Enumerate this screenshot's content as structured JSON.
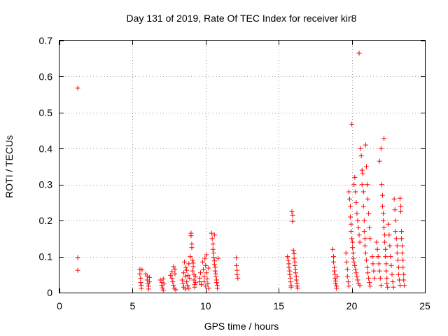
{
  "chart_data": {
    "type": "scatter",
    "title": "Day 131 of 2019, Rate Of TEC Index for receiver kir8",
    "xlabel": "GPS time / hours",
    "ylabel": "ROTI / TECUs",
    "xlim": [
      0,
      25
    ],
    "ylim": [
      0,
      0.7
    ],
    "xticks": [
      0,
      5,
      10,
      15,
      20,
      25
    ],
    "yticks": [
      0,
      0.1,
      0.2,
      0.3,
      0.4,
      0.5,
      0.6,
      0.7
    ],
    "xtick_labels": [
      "0",
      "5",
      "10",
      "15",
      "20",
      "25"
    ],
    "ytick_labels": [
      "0",
      "0.1",
      "0.2",
      "0.3",
      "0.4",
      "0.5",
      "0.6",
      "0.7"
    ],
    "grid": true,
    "marker": "+",
    "marker_color": "#ff0000",
    "series": [
      {
        "name": "ROTI",
        "points": [
          [
            1.25,
            0.568
          ],
          [
            1.25,
            0.097
          ],
          [
            1.25,
            0.062
          ],
          [
            5.5,
            0.065
          ],
          [
            5.5,
            0.052
          ],
          [
            5.55,
            0.04
          ],
          [
            5.55,
            0.028
          ],
          [
            5.6,
            0.02
          ],
          [
            5.6,
            0.012
          ],
          [
            5.65,
            0.063
          ],
          [
            5.9,
            0.052
          ],
          [
            6.0,
            0.046
          ],
          [
            6.0,
            0.035
          ],
          [
            6.05,
            0.025
          ],
          [
            6.1,
            0.018
          ],
          [
            6.1,
            0.01
          ],
          [
            6.15,
            0.03
          ],
          [
            6.15,
            0.042
          ],
          [
            6.9,
            0.035
          ],
          [
            7.0,
            0.028
          ],
          [
            7.0,
            0.02
          ],
          [
            7.05,
            0.013
          ],
          [
            7.1,
            0.007
          ],
          [
            7.1,
            0.038
          ],
          [
            7.15,
            0.024
          ],
          [
            7.6,
            0.048
          ],
          [
            7.7,
            0.058
          ],
          [
            7.7,
            0.04
          ],
          [
            7.75,
            0.03
          ],
          [
            7.8,
            0.072
          ],
          [
            7.8,
            0.02
          ],
          [
            7.85,
            0.012
          ],
          [
            7.9,
            0.065
          ],
          [
            7.9,
            0.052
          ],
          [
            7.95,
            0.008
          ],
          [
            8.4,
            0.035
          ],
          [
            8.45,
            0.025
          ],
          [
            8.5,
            0.055
          ],
          [
            8.5,
            0.015
          ],
          [
            8.55,
            0.085
          ],
          [
            8.6,
            0.045
          ],
          [
            8.6,
            0.01
          ],
          [
            8.65,
            0.07
          ],
          [
            8.7,
            0.03
          ],
          [
            8.7,
            0.062
          ],
          [
            8.75,
            0.02
          ],
          [
            8.8,
            0.048
          ],
          [
            8.85,
            0.08
          ],
          [
            8.85,
            0.012
          ],
          [
            8.9,
            0.04
          ],
          [
            8.95,
            0.1
          ],
          [
            9.0,
            0.165
          ],
          [
            9.0,
            0.158
          ],
          [
            9.05,
            0.135
          ],
          [
            9.05,
            0.125
          ],
          [
            9.1,
            0.09
          ],
          [
            9.1,
            0.06
          ],
          [
            9.15,
            0.082
          ],
          [
            9.15,
            0.072
          ],
          [
            9.2,
            0.05
          ],
          [
            9.2,
            0.035
          ],
          [
            9.25,
            0.022
          ],
          [
            9.25,
            0.015
          ],
          [
            9.3,
            0.045
          ],
          [
            9.3,
            0.028
          ],
          [
            9.6,
            0.04
          ],
          [
            9.6,
            0.03
          ],
          [
            9.65,
            0.055
          ],
          [
            9.7,
            0.022
          ],
          [
            9.8,
            0.085
          ],
          [
            9.85,
            0.065
          ],
          [
            9.9,
            0.045
          ],
          [
            9.9,
            0.03
          ],
          [
            9.95,
            0.095
          ],
          [
            10.0,
            0.075
          ],
          [
            10.0,
            0.018
          ],
          [
            10.05,
            0.105
          ],
          [
            10.05,
            0.055
          ],
          [
            10.1,
            0.038
          ],
          [
            10.15,
            0.025
          ],
          [
            10.2,
            0.068
          ],
          [
            10.2,
            0.012
          ],
          [
            10.4,
            0.165
          ],
          [
            10.45,
            0.15
          ],
          [
            10.5,
            0.135
          ],
          [
            10.5,
            0.12
          ],
          [
            10.55,
            0.11
          ],
          [
            10.55,
            0.098
          ],
          [
            10.6,
            0.088
          ],
          [
            10.6,
            0.078
          ],
          [
            10.65,
            0.07
          ],
          [
            10.65,
            0.06
          ],
          [
            10.7,
            0.052
          ],
          [
            10.7,
            0.045
          ],
          [
            10.75,
            0.035
          ],
          [
            10.75,
            0.028
          ],
          [
            10.8,
            0.02
          ],
          [
            10.8,
            0.012
          ],
          [
            10.85,
            0.095
          ],
          [
            10.6,
            0.16
          ],
          [
            12.1,
            0.097
          ],
          [
            12.1,
            0.075
          ],
          [
            12.15,
            0.062
          ],
          [
            12.15,
            0.05
          ],
          [
            12.2,
            0.04
          ],
          [
            15.6,
            0.1
          ],
          [
            15.65,
            0.09
          ],
          [
            15.7,
            0.08
          ],
          [
            15.7,
            0.07
          ],
          [
            15.75,
            0.06
          ],
          [
            15.75,
            0.05
          ],
          [
            15.8,
            0.04
          ],
          [
            15.8,
            0.03
          ],
          [
            15.85,
            0.02
          ],
          [
            15.85,
            0.015
          ],
          [
            15.9,
            0.225
          ],
          [
            15.95,
            0.215
          ],
          [
            15.95,
            0.198
          ],
          [
            16.0,
            0.118
          ],
          [
            16.05,
            0.108
          ],
          [
            16.05,
            0.095
          ],
          [
            16.1,
            0.085
          ],
          [
            16.1,
            0.075
          ],
          [
            16.15,
            0.065
          ],
          [
            16.15,
            0.055
          ],
          [
            16.2,
            0.045
          ],
          [
            16.2,
            0.035
          ],
          [
            16.25,
            0.025
          ],
          [
            16.25,
            0.018
          ],
          [
            16.3,
            0.012
          ],
          [
            18.7,
            0.12
          ],
          [
            18.75,
            0.1
          ],
          [
            18.75,
            0.085
          ],
          [
            18.8,
            0.07
          ],
          [
            18.8,
            0.06
          ],
          [
            18.85,
            0.05
          ],
          [
            18.85,
            0.04
          ],
          [
            18.9,
            0.032
          ],
          [
            18.9,
            0.025
          ],
          [
            18.95,
            0.018
          ],
          [
            18.95,
            0.012
          ],
          [
            19.0,
            0.045
          ],
          [
            19.6,
            0.11
          ],
          [
            19.65,
            0.085
          ],
          [
            19.7,
            0.065
          ],
          [
            19.7,
            0.045
          ],
          [
            19.75,
            0.03
          ],
          [
            19.8,
            0.018
          ],
          [
            19.8,
            0.28
          ],
          [
            19.85,
            0.26
          ],
          [
            19.9,
            0.24
          ],
          [
            19.9,
            0.21
          ],
          [
            19.95,
            0.19
          ],
          [
            19.95,
            0.17
          ],
          [
            20.0,
            0.468
          ],
          [
            20.0,
            0.15
          ],
          [
            20.05,
            0.14
          ],
          [
            20.05,
            0.125
          ],
          [
            20.1,
            0.11
          ],
          [
            20.1,
            0.095
          ],
          [
            20.15,
            0.3
          ],
          [
            20.15,
            0.085
          ],
          [
            20.2,
            0.32
          ],
          [
            20.2,
            0.075
          ],
          [
            20.25,
            0.28
          ],
          [
            20.25,
            0.065
          ],
          [
            20.3,
            0.25
          ],
          [
            20.3,
            0.055
          ],
          [
            20.35,
            0.22
          ],
          [
            20.35,
            0.045
          ],
          [
            20.4,
            0.2
          ],
          [
            20.4,
            0.035
          ],
          [
            20.45,
            0.18
          ],
          [
            20.45,
            0.025
          ],
          [
            20.5,
            0.665
          ],
          [
            20.5,
            0.16
          ],
          [
            20.55,
            0.14
          ],
          [
            20.55,
            0.02
          ],
          [
            20.6,
            0.4
          ],
          [
            20.65,
            0.38
          ],
          [
            20.7,
            0.34
          ],
          [
            20.7,
            0.3
          ],
          [
            20.75,
            0.33
          ],
          [
            20.8,
            0.28
          ],
          [
            20.8,
            0.24
          ],
          [
            20.85,
            0.2
          ],
          [
            20.85,
            0.17
          ],
          [
            20.9,
            0.15
          ],
          [
            20.9,
            0.13
          ],
          [
            20.95,
            0.41
          ],
          [
            20.95,
            0.11
          ],
          [
            21.0,
            0.35
          ],
          [
            21.0,
            0.09
          ],
          [
            21.05,
            0.3
          ],
          [
            21.05,
            0.07
          ],
          [
            21.1,
            0.26
          ],
          [
            21.1,
            0.055
          ],
          [
            21.15,
            0.22
          ],
          [
            21.15,
            0.04
          ],
          [
            21.2,
            0.18
          ],
          [
            21.2,
            0.028
          ],
          [
            21.25,
            0.15
          ],
          [
            21.25,
            0.018
          ],
          [
            21.4,
            0.1
          ],
          [
            21.45,
            0.08
          ],
          [
            21.5,
            0.06
          ],
          [
            21.55,
            0.04
          ],
          [
            21.7,
            0.14
          ],
          [
            21.75,
            0.12
          ],
          [
            21.8,
            0.1
          ],
          [
            21.85,
            0.08
          ],
          [
            21.9,
            0.365
          ],
          [
            21.9,
            0.06
          ],
          [
            21.95,
            0.04
          ],
          [
            22.0,
            0.4
          ],
          [
            22.0,
            0.02
          ],
          [
            22.05,
            0.3
          ],
          [
            22.1,
            0.27
          ],
          [
            22.1,
            0.24
          ],
          [
            22.15,
            0.22
          ],
          [
            22.15,
            0.2
          ],
          [
            22.2,
            0.428
          ],
          [
            22.2,
            0.18
          ],
          [
            22.25,
            0.16
          ],
          [
            22.25,
            0.14
          ],
          [
            22.3,
            0.12
          ],
          [
            22.3,
            0.1
          ],
          [
            22.35,
            0.08
          ],
          [
            22.35,
            0.06
          ],
          [
            22.4,
            0.04
          ],
          [
            22.4,
            0.025
          ],
          [
            22.45,
            0.015
          ],
          [
            22.5,
            0.19
          ],
          [
            22.55,
            0.16
          ],
          [
            22.6,
            0.13
          ],
          [
            22.65,
            0.1
          ],
          [
            22.7,
            0.075
          ],
          [
            22.75,
            0.05
          ],
          [
            22.8,
            0.03
          ],
          [
            22.85,
            0.015
          ],
          [
            22.9,
            0.26
          ],
          [
            22.95,
            0.23
          ],
          [
            23.0,
            0.2
          ],
          [
            23.0,
            0.17
          ],
          [
            23.05,
            0.15
          ],
          [
            23.1,
            0.13
          ],
          [
            23.1,
            0.11
          ],
          [
            23.15,
            0.09
          ],
          [
            23.2,
            0.07
          ],
          [
            23.2,
            0.05
          ],
          [
            23.25,
            0.035
          ],
          [
            23.3,
            0.02
          ],
          [
            23.3,
            0.262
          ],
          [
            23.35,
            0.24
          ],
          [
            23.35,
            0.225
          ],
          [
            23.4,
            0.17
          ],
          [
            23.4,
            0.15
          ],
          [
            23.45,
            0.13
          ],
          [
            23.45,
            0.11
          ],
          [
            23.5,
            0.09
          ],
          [
            23.5,
            0.07
          ],
          [
            23.55,
            0.05
          ],
          [
            23.55,
            0.035
          ],
          [
            23.6,
            0.02
          ]
        ]
      }
    ]
  }
}
